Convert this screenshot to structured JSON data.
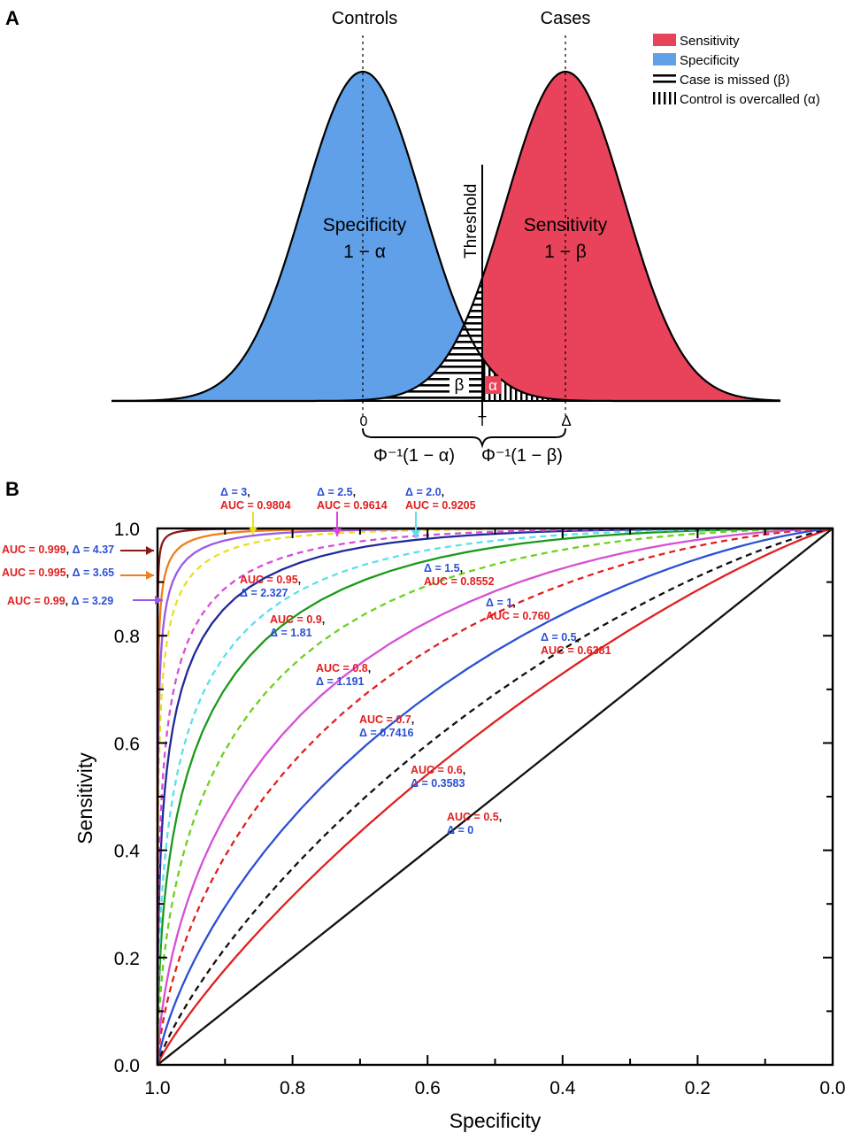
{
  "panel_a": {
    "letter": "A",
    "controls_label": "Controls",
    "cases_label": "Cases",
    "specificity_text": "Specificity",
    "specificity_formula": "1 − α",
    "sensitivity_text": "Sensitivity",
    "sensitivity_formula": "1 − β",
    "threshold_label": "Threshold",
    "beta_symbol": "β",
    "alpha_symbol": "α",
    "tick_zero": "0",
    "tick_t": "T",
    "tick_delta": "Δ",
    "formula_left": "Φ⁻¹(1 − α)",
    "formula_right": "Φ⁻¹(1 − β)",
    "legend": [
      {
        "label": "Sensitivity",
        "kind": "swatch",
        "color": "#e8435a"
      },
      {
        "label": "Specificity",
        "kind": "swatch",
        "color": "#5fa0e8"
      },
      {
        "label": "Case is missed (β)",
        "kind": "hlines",
        "color": "#000000"
      },
      {
        "label": "Control is overcalled (α)",
        "kind": "vlines",
        "color": "#000000"
      }
    ],
    "colors": {
      "controls": "#5fa0e8",
      "cases": "#e8435a"
    }
  },
  "panel_b": {
    "letter": "B"
  },
  "chart_data": {
    "type": "line",
    "title": "",
    "xlabel": "Specificity",
    "ylabel": "Sensitivity",
    "xlim": [
      1.0,
      0.0
    ],
    "ylim": [
      0.0,
      1.0
    ],
    "x_ticks": [
      "1.0",
      "0.8",
      "0.6",
      "0.4",
      "0.2",
      "0.0"
    ],
    "y_ticks": [
      "0.0",
      "0.2",
      "0.4",
      "0.6",
      "0.8",
      "1.0"
    ],
    "curve_model": "binormal ROC: Sensitivity = Φ(Δ − Φ⁻¹(Specificity))",
    "series": [
      {
        "delta": 0,
        "auc": 0.5,
        "color": "#111111",
        "dashed": false
      },
      {
        "delta": 0.3583,
        "auc": 0.6,
        "color": "#e02020",
        "dashed": false
      },
      {
        "delta": 0.5,
        "auc": 0.6381,
        "color": "#111111",
        "dashed": true
      },
      {
        "delta": 0.7416,
        "auc": 0.7,
        "color": "#2b50d6",
        "dashed": false
      },
      {
        "delta": 1.0,
        "auc": 0.76,
        "color": "#e02020",
        "dashed": true
      },
      {
        "delta": 1.191,
        "auc": 0.8,
        "color": "#d64fd6",
        "dashed": false
      },
      {
        "delta": 1.5,
        "auc": 0.8552,
        "color": "#6ed020",
        "dashed": true
      },
      {
        "delta": 1.81,
        "auc": 0.9,
        "color": "#1a9a1a",
        "dashed": false
      },
      {
        "delta": 2.0,
        "auc": 0.9205,
        "color": "#5ae0ee",
        "dashed": true
      },
      {
        "delta": 2.327,
        "auc": 0.95,
        "color": "#202a9a",
        "dashed": false
      },
      {
        "delta": 2.5,
        "auc": 0.9614,
        "color": "#d64fd6",
        "dashed": true
      },
      {
        "delta": 3.0,
        "auc": 0.9804,
        "color": "#e8e020",
        "dashed": true
      },
      {
        "delta": 3.29,
        "auc": 0.99,
        "color": "#9a5ae8",
        "dashed": false
      },
      {
        "delta": 3.65,
        "auc": 0.995,
        "color": "#f07f1a",
        "dashed": false
      },
      {
        "delta": 4.37,
        "auc": 0.999,
        "color": "#8a1a1a",
        "dashed": false
      }
    ],
    "annotations": [
      {
        "line1": [
          {
            "t": "AUC = 0.5",
            "c": "#e02020"
          },
          {
            "t": ",",
            "c": "#111"
          }
        ],
        "line2": [
          {
            "t": "Δ = 0",
            "c": "#2b50d6"
          }
        ]
      },
      {
        "line1": [
          {
            "t": "AUC = 0.6",
            "c": "#e02020"
          },
          {
            "t": ",",
            "c": "#111"
          }
        ],
        "line2": [
          {
            "t": "Δ = 0.3583",
            "c": "#2b50d6"
          }
        ]
      },
      {
        "line1": [
          {
            "t": "Δ = 0.5",
            "c": "#2b50d6"
          },
          {
            "t": ",",
            "c": "#111"
          }
        ],
        "line2": [
          {
            "t": "AUC = 0.6381",
            "c": "#e02020"
          }
        ]
      },
      {
        "line1": [
          {
            "t": "AUC = 0.7",
            "c": "#e02020"
          },
          {
            "t": ",",
            "c": "#111"
          }
        ],
        "line2": [
          {
            "t": "Δ = 0.7416",
            "c": "#2b50d6"
          }
        ]
      },
      {
        "line1": [
          {
            "t": "Δ = 1",
            "c": "#2b50d6"
          },
          {
            "t": ",",
            "c": "#111"
          }
        ],
        "line2": [
          {
            "t": "AUC = 0.760",
            "c": "#e02020"
          }
        ]
      },
      {
        "line1": [
          {
            "t": "AUC = 0.8",
            "c": "#e02020"
          },
          {
            "t": ",",
            "c": "#111"
          }
        ],
        "line2": [
          {
            "t": "Δ = 1.191",
            "c": "#2b50d6"
          }
        ]
      },
      {
        "line1": [
          {
            "t": "Δ = 1.5",
            "c": "#2b50d6"
          },
          {
            "t": ",",
            "c": "#111"
          }
        ],
        "line2": [
          {
            "t": "AUC = 0.8552",
            "c": "#e02020"
          }
        ]
      },
      {
        "line1": [
          {
            "t": "AUC = 0.9",
            "c": "#e02020"
          },
          {
            "t": ",",
            "c": "#111"
          }
        ],
        "line2": [
          {
            "t": "Δ = 1.81",
            "c": "#2b50d6"
          }
        ]
      },
      {
        "line1": [
          {
            "t": "Δ = 2.0",
            "c": "#2b50d6"
          },
          {
            "t": ",",
            "c": "#111"
          }
        ],
        "line2": [
          {
            "t": "AUC = 0.9205",
            "c": "#e02020"
          }
        ]
      },
      {
        "line1": [
          {
            "t": "AUC = 0.95",
            "c": "#e02020"
          },
          {
            "t": ",",
            "c": "#111"
          }
        ],
        "line2": [
          {
            "t": "Δ = 2.327",
            "c": "#2b50d6"
          }
        ]
      },
      {
        "line1": [
          {
            "t": "Δ = 2.5",
            "c": "#2b50d6"
          },
          {
            "t": ",",
            "c": "#111"
          }
        ],
        "line2": [
          {
            "t": "AUC = 0.9614",
            "c": "#e02020"
          }
        ]
      },
      {
        "line1": [
          {
            "t": "Δ = 3",
            "c": "#2b50d6"
          },
          {
            "t": ",",
            "c": "#111"
          }
        ],
        "line2": [
          {
            "t": "AUC = 0.9804",
            "c": "#e02020"
          }
        ]
      },
      {
        "line1": [
          {
            "t": "AUC = 0.99",
            "c": "#e02020"
          },
          {
            "t": ", ",
            "c": "#111"
          },
          {
            "t": "Δ = 3.29",
            "c": "#2b50d6"
          }
        ]
      },
      {
        "line1": [
          {
            "t": "AUC = 0.995",
            "c": "#e02020"
          },
          {
            "t": ", ",
            "c": "#111"
          },
          {
            "t": "Δ = 3.65",
            "c": "#2b50d6"
          }
        ]
      },
      {
        "line1": [
          {
            "t": "AUC = 0.999",
            "c": "#e02020"
          },
          {
            "t": ", ",
            "c": "#111"
          },
          {
            "t": "Δ = 4.37",
            "c": "#2b50d6"
          }
        ]
      }
    ],
    "legend_position": "none",
    "grid": false
  }
}
